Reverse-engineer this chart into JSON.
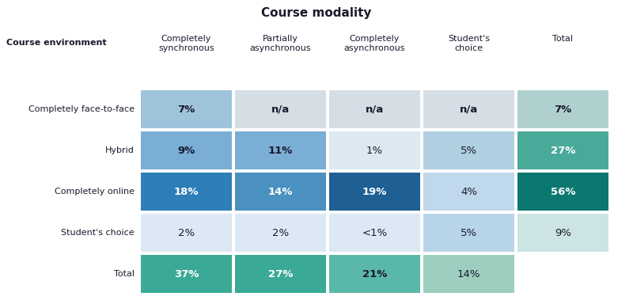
{
  "title": "Course modality",
  "col_header_label": "Course environment",
  "col_headers": [
    "Completely\nsynchronous",
    "Partially\nasynchronous",
    "Completely\nasynchronous",
    "Student's\nchoice",
    "Total"
  ],
  "row_headers": [
    "Completely face-to-face",
    "Hybrid",
    "Completely online",
    "Student's choice",
    "Total"
  ],
  "cell_values": [
    [
      "7%",
      "n/a",
      "n/a",
      "n/a",
      "7%"
    ],
    [
      "9%",
      "11%",
      "1%",
      "5%",
      "27%"
    ],
    [
      "18%",
      "14%",
      "19%",
      "4%",
      "56%"
    ],
    [
      "2%",
      "2%",
      "<1%",
      "5%",
      "9%"
    ],
    [
      "37%",
      "27%",
      "21%",
      "14%",
      ""
    ]
  ],
  "cell_colors": [
    [
      "#9ec4dc",
      "#d5dde5",
      "#d5dde5",
      "#d5dde5",
      "#b0d0d0"
    ],
    [
      "#7aaed4",
      "#7aaed4",
      "#dde8f0",
      "#b0cfe0",
      "#4aaa9a"
    ],
    [
      "#2e7eb8",
      "#4a90c0",
      "#1e5f94",
      "#c0d8ec",
      "#0a7870"
    ],
    [
      "#dce8f4",
      "#dce8f4",
      "#dce8f4",
      "#b8d4e8",
      "#cce4e4"
    ],
    [
      "#3aaa96",
      "#3aaa96",
      "#5ab8a8",
      "#9ecec0",
      "#ffffff"
    ]
  ],
  "text_colors": [
    [
      "#1a1a2e",
      "#1a1a2e",
      "#1a1a2e",
      "#1a1a2e",
      "#1a1a2e"
    ],
    [
      "#1a1a2e",
      "#1a1a2e",
      "#1a1a2e",
      "#1a1a2e",
      "#ffffff"
    ],
    [
      "#ffffff",
      "#ffffff",
      "#ffffff",
      "#1a1a2e",
      "#ffffff"
    ],
    [
      "#1a1a2e",
      "#1a1a2e",
      "#1a1a2e",
      "#1a1a2e",
      "#1a1a2e"
    ],
    [
      "#ffffff",
      "#ffffff",
      "#1a1a2e",
      "#1a1a2e",
      "#1a1a2e"
    ]
  ],
  "bold_cells": [
    [
      true,
      true,
      true,
      true,
      true
    ],
    [
      true,
      true,
      false,
      false,
      true
    ],
    [
      true,
      true,
      true,
      false,
      true
    ],
    [
      false,
      false,
      false,
      false,
      false
    ],
    [
      true,
      true,
      true,
      false,
      false
    ]
  ],
  "bg_color": "#ffffff",
  "figsize": [
    8.0,
    3.84
  ],
  "dpi": 100
}
